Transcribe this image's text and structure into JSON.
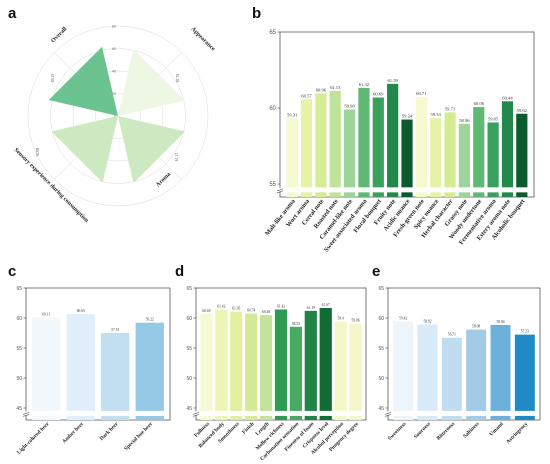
{
  "panels": {
    "a": "a",
    "b": "b",
    "c": "c",
    "d": "d",
    "e": "e"
  },
  "chart_data": [
    {
      "panel": "a",
      "type": "radar",
      "categories": [
        "Appearance",
        "Aroma",
        "Sensory experience during consumption",
        "Overall"
      ],
      "values": [
        61.1,
        61.17,
        60.76,
        63.15
      ],
      "value_labels": [
        "61.10",
        "61.17",
        "60.76",
        "63.15"
      ],
      "rlim": [
        0,
        80
      ],
      "rticks": [
        0,
        20,
        40,
        60,
        80
      ],
      "colors": [
        "#eef7e4",
        "#cce9c2",
        "#cce9c2",
        "#6bc48f"
      ]
    },
    {
      "panel": "b",
      "type": "bar",
      "categories": [
        "Malt-like aroma",
        "Wort aroma",
        "Cereal note",
        "Roasted note",
        "Caramel-like note",
        "Sweet-associated aroma",
        "Floral bouquet",
        "Fruity note",
        "Acidic nuance",
        "Fresh-green note",
        "Spicy nuance",
        "Herbal character",
        "Grassy note",
        "Woody undertone",
        "Fermentative aroma",
        "Estery aroma note",
        "Alcoholic bouquet"
      ],
      "values": [
        59.31,
        60.57,
        60.96,
        61.13,
        59.9,
        61.32,
        60.69,
        61.59,
        59.24,
        60.71,
        59.33,
        59.71,
        58.96,
        60.06,
        59.05,
        60.44,
        59.62
      ],
      "value_labels": [
        "59.31",
        "60.57",
        "60.96",
        "61.13",
        "59.90",
        "61.32",
        "60.69",
        "61.59",
        "59.24",
        "60.71",
        "59.33",
        "59.71",
        "58.96",
        "60.06",
        "59.05",
        "60.44",
        "59.62"
      ],
      "colors": [
        "#f4f9cf",
        "#e6f3a6",
        "#d6ec93",
        "#bfe39b",
        "#9dd49a",
        "#5fb874",
        "#3aa05e",
        "#23884b",
        "#0b5b2e",
        "#f4f9cf",
        "#e6f3a6",
        "#d6ec93",
        "#9dd49a",
        "#5fb874",
        "#3aa05e",
        "#23884b",
        "#0b5b2e"
      ],
      "yticks": [
        55,
        60,
        65
      ],
      "ylim": [
        55,
        65
      ]
    },
    {
      "panel": "c",
      "type": "bar",
      "categories": [
        "Light-colored beer",
        "Amber beer",
        "Dark beer",
        "Special hue beer"
      ],
      "values": [
        60.11,
        60.65,
        57.51,
        59.22
      ],
      "value_labels": [
        "60.11",
        "60.65",
        "57.51",
        "59.22"
      ],
      "colors": [
        "#f3f8fd",
        "#dfeefa",
        "#c2dff1",
        "#93c9e4"
      ],
      "yticks": [
        45,
        50,
        55,
        60,
        65
      ],
      "ylim": [
        45,
        65
      ]
    },
    {
      "panel": "d",
      "type": "bar",
      "categories": [
        "Fullness",
        "Balanced body",
        "Smoothness",
        "Finish",
        "Length",
        "Mellow richness",
        "Carbonation sensation",
        "Fineness of foam",
        "Crispness level",
        "Alcohol perception",
        "Pungency degree"
      ],
      "values": [
        60.69,
        61.42,
        61.05,
        60.74,
        60.48,
        61.42,
        58.53,
        61.19,
        61.67,
        59.4,
        59.06
      ],
      "value_labels": [
        "60.69",
        "61.42",
        "61.05",
        "60.74",
        "60.48",
        "61.42",
        "58.53",
        "61.19",
        "61.67",
        "59.4",
        "59.06"
      ],
      "colors": [
        "#f6fad4",
        "#ecf5b4",
        "#e2f0a0",
        "#d5ea96",
        "#c3e39c",
        "#2e9a52",
        "#4aa962",
        "#1f8445",
        "#136b36",
        "#f4f8c8",
        "#f4f8c8"
      ],
      "yticks": [
        45,
        50,
        55,
        60,
        65
      ],
      "ylim": [
        45,
        65
      ]
    },
    {
      "panel": "e",
      "type": "bar",
      "categories": [
        "Sweetness",
        "Sourness",
        "Bitterness",
        "Saltiness",
        "Umami",
        "Astringency"
      ],
      "values": [
        59.42,
        58.92,
        56.71,
        58.08,
        58.84,
        57.23
      ],
      "value_labels": [
        "59.42",
        "58.92",
        "56.71",
        "58.08",
        "58.84",
        "57.23"
      ],
      "colors": [
        "#edf5fc",
        "#d8eaf8",
        "#c0dcf1",
        "#a2cbe8",
        "#6cb0dc",
        "#1f8ac6"
      ],
      "yticks": [
        45,
        50,
        55,
        60,
        65
      ],
      "ylim": [
        45,
        65
      ]
    }
  ]
}
